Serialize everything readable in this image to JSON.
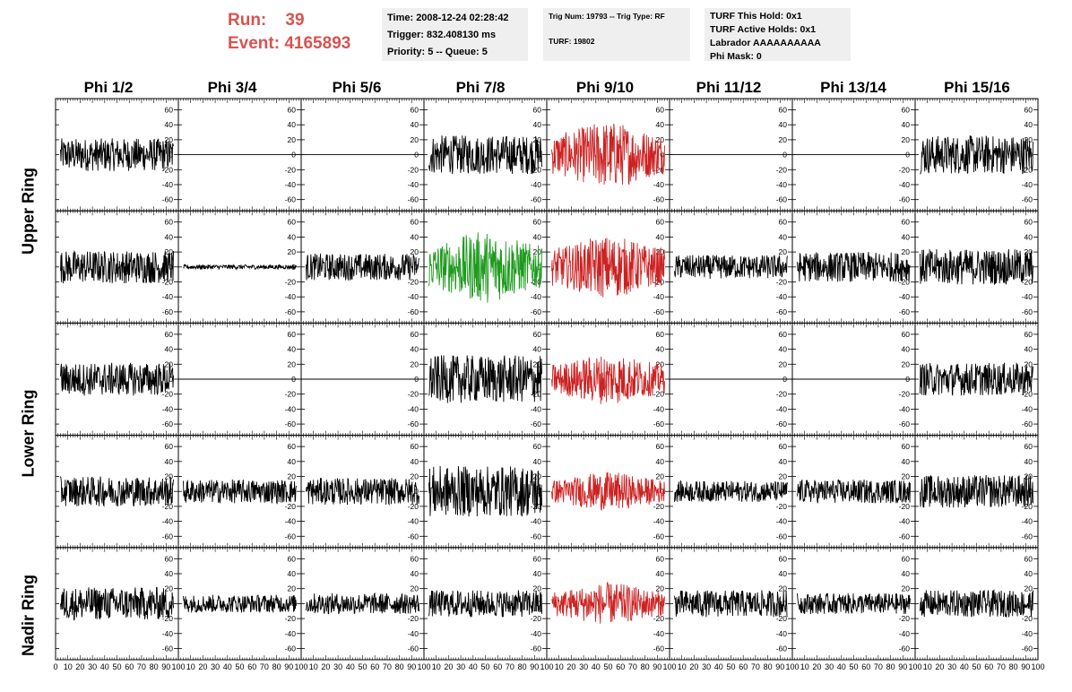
{
  "header": {
    "run_label": "Run:",
    "run_value": "39",
    "event_label": "Event:",
    "event_value": "4165893"
  },
  "info_time": {
    "time": "Time: 2008-12-24 02:28:42",
    "trigger": "Trigger: 832.408130 ms",
    "priority": "Priority: 5 -- Queue: 5"
  },
  "info_trig": {
    "trig": "Trig Num: 19793 -- Trig Type: RF",
    "turf": "TURF: 19802"
  },
  "info_turf": {
    "hold": "TURF This Hold: 0x1",
    "active": "TURF Active Holds: 0x1",
    "labrador": "Labrador AAAAAAAAAA",
    "mask": "Phi Mask: 0"
  },
  "phi_headers": [
    "Phi 1/2",
    "Phi 3/4",
    "Phi 5/6",
    "Phi 7/8",
    "Phi 9/10",
    "Phi 11/12",
    "Phi 13/14",
    "Phi 15/16"
  ],
  "ring_labels": [
    "Upper Ring",
    "Lower Ring",
    "Nadir Ring"
  ],
  "chart_data": {
    "type": "line",
    "xlim": [
      0,
      100
    ],
    "ylim": [
      -75,
      75
    ],
    "x_ticks": [
      0,
      10,
      20,
      30,
      40,
      50,
      60,
      70,
      80,
      90,
      100
    ],
    "y_ticks": [
      -60,
      -40,
      -20,
      0,
      20,
      40,
      60
    ],
    "colors": {
      "normal": "#000000",
      "phi_trigger": "#cc2222",
      "hit_channel": "#1e9a1e"
    },
    "grid": {
      "rows": 5,
      "cols": 8,
      "amplitude": [
        [
          22,
          0,
          0,
          26,
          45,
          0,
          0,
          26
        ],
        [
          22,
          3,
          18,
          48,
          42,
          16,
          20,
          24
        ],
        [
          22,
          0,
          0,
          32,
          34,
          0,
          0,
          22
        ],
        [
          20,
          16,
          18,
          34,
          26,
          14,
          16,
          22
        ],
        [
          22,
          12,
          14,
          18,
          28,
          18,
          14,
          18
        ]
      ],
      "color_key": [
        [
          "normal",
          "normal",
          "normal",
          "normal",
          "phi_trigger",
          "normal",
          "normal",
          "normal"
        ],
        [
          "normal",
          "normal",
          "normal",
          "hit_channel",
          "phi_trigger",
          "normal",
          "normal",
          "normal"
        ],
        [
          "normal",
          "normal",
          "normal",
          "normal",
          "phi_trigger",
          "normal",
          "normal",
          "normal"
        ],
        [
          "normal",
          "normal",
          "normal",
          "normal",
          "phi_trigger",
          "normal",
          "normal",
          "normal"
        ],
        [
          "normal",
          "normal",
          "normal",
          "normal",
          "phi_trigger",
          "normal",
          "normal",
          "normal"
        ]
      ]
    }
  }
}
